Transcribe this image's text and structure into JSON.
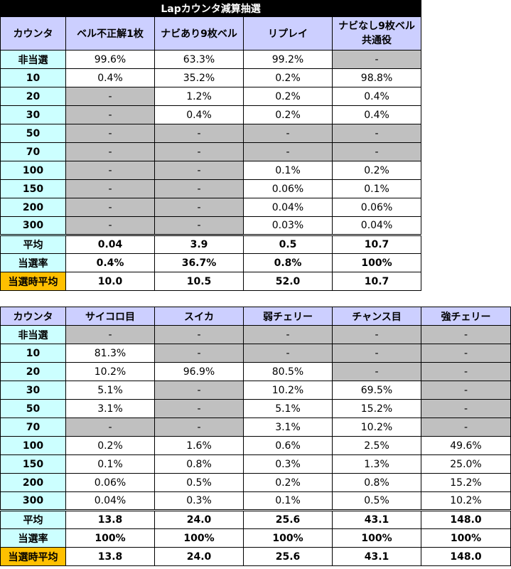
{
  "table1": {
    "title": "Lapカウンタ減算抽選",
    "headers": [
      "カウンタ",
      "ベル不正解1枚",
      "ナビあり9枚ベル",
      "リプレイ",
      "ナビなし9枚ベル 共通役"
    ],
    "header_last_line1": "ナビなし9枚ベル",
    "header_last_line2": "共通役",
    "rows": [
      {
        "label": "非当選",
        "cells": [
          "99.6%",
          "63.3%",
          "99.2%",
          "-"
        ]
      },
      {
        "label": "10",
        "cells": [
          "0.4%",
          "35.2%",
          "0.2%",
          "98.8%"
        ]
      },
      {
        "label": "20",
        "cells": [
          "-",
          "1.2%",
          "0.2%",
          "0.4%"
        ]
      },
      {
        "label": "30",
        "cells": [
          "-",
          "0.4%",
          "0.2%",
          "0.4%"
        ]
      },
      {
        "label": "50",
        "cells": [
          "-",
          "-",
          "-",
          "-"
        ]
      },
      {
        "label": "70",
        "cells": [
          "-",
          "-",
          "-",
          "-"
        ]
      },
      {
        "label": "100",
        "cells": [
          "-",
          "-",
          "0.1%",
          "0.2%"
        ]
      },
      {
        "label": "150",
        "cells": [
          "-",
          "-",
          "0.06%",
          "0.1%"
        ]
      },
      {
        "label": "200",
        "cells": [
          "-",
          "-",
          "0.04%",
          "0.06%"
        ]
      },
      {
        "label": "300",
        "cells": [
          "-",
          "-",
          "0.03%",
          "0.04%"
        ]
      }
    ],
    "grey": [
      [
        false,
        false,
        false,
        true
      ],
      [
        false,
        false,
        false,
        false
      ],
      [
        true,
        false,
        false,
        false
      ],
      [
        true,
        false,
        false,
        false
      ],
      [
        true,
        true,
        true,
        true
      ],
      [
        true,
        true,
        true,
        true
      ],
      [
        true,
        true,
        false,
        false
      ],
      [
        true,
        true,
        false,
        false
      ],
      [
        true,
        true,
        false,
        false
      ],
      [
        true,
        true,
        false,
        false
      ]
    ],
    "summary": [
      {
        "label": "平均",
        "cells": [
          "0.04",
          "3.9",
          "0.5",
          "10.7"
        ]
      },
      {
        "label": "当選率",
        "cells": [
          "0.4%",
          "36.7%",
          "0.8%",
          "100%"
        ]
      },
      {
        "label": "当選時平均",
        "cells": [
          "10.0",
          "10.5",
          "52.0",
          "10.7"
        ]
      }
    ]
  },
  "table2": {
    "headers": [
      "カウンタ",
      "サイコロ目",
      "スイカ",
      "弱チェリー",
      "チャンス目",
      "強チェリー"
    ],
    "rows": [
      {
        "label": "非当選",
        "cells": [
          "-",
          "-",
          "-",
          "-",
          "-"
        ]
      },
      {
        "label": "10",
        "cells": [
          "81.3%",
          "-",
          "-",
          "-",
          "-"
        ]
      },
      {
        "label": "20",
        "cells": [
          "10.2%",
          "96.9%",
          "80.5%",
          "-",
          "-"
        ]
      },
      {
        "label": "30",
        "cells": [
          "5.1%",
          "-",
          "10.2%",
          "69.5%",
          "-"
        ]
      },
      {
        "label": "50",
        "cells": [
          "3.1%",
          "-",
          "5.1%",
          "15.2%",
          "-"
        ]
      },
      {
        "label": "70",
        "cells": [
          "-",
          "-",
          "3.1%",
          "10.2%",
          "-"
        ]
      },
      {
        "label": "100",
        "cells": [
          "0.2%",
          "1.6%",
          "0.6%",
          "2.5%",
          "49.6%"
        ]
      },
      {
        "label": "150",
        "cells": [
          "0.1%",
          "0.8%",
          "0.3%",
          "1.3%",
          "25.0%"
        ]
      },
      {
        "label": "200",
        "cells": [
          "0.06%",
          "0.5%",
          "0.2%",
          "0.8%",
          "15.2%"
        ]
      },
      {
        "label": "300",
        "cells": [
          "0.04%",
          "0.3%",
          "0.1%",
          "0.5%",
          "10.2%"
        ]
      }
    ],
    "grey": [
      [
        true,
        true,
        true,
        true,
        true
      ],
      [
        false,
        true,
        true,
        true,
        true
      ],
      [
        false,
        false,
        false,
        true,
        true
      ],
      [
        false,
        true,
        false,
        false,
        true
      ],
      [
        false,
        true,
        false,
        false,
        true
      ],
      [
        true,
        true,
        false,
        false,
        true
      ],
      [
        false,
        false,
        false,
        false,
        false
      ],
      [
        false,
        false,
        false,
        false,
        false
      ],
      [
        false,
        false,
        false,
        false,
        false
      ],
      [
        false,
        false,
        false,
        false,
        false
      ]
    ],
    "summary": [
      {
        "label": "平均",
        "cells": [
          "13.8",
          "24.0",
          "25.6",
          "43.1",
          "148.0"
        ]
      },
      {
        "label": "当選率",
        "cells": [
          "100%",
          "100%",
          "100%",
          "100%",
          "100%"
        ]
      },
      {
        "label": "当選時平均",
        "cells": [
          "13.8",
          "24.0",
          "25.6",
          "43.1",
          "148.0"
        ]
      }
    ]
  },
  "colors": {
    "header_bg": "#cccfff",
    "label_bg": "#ccffff",
    "highlight_label_bg": "#ffc000",
    "grey_cell": "#c0c0c0",
    "title_bg": "#000000"
  }
}
